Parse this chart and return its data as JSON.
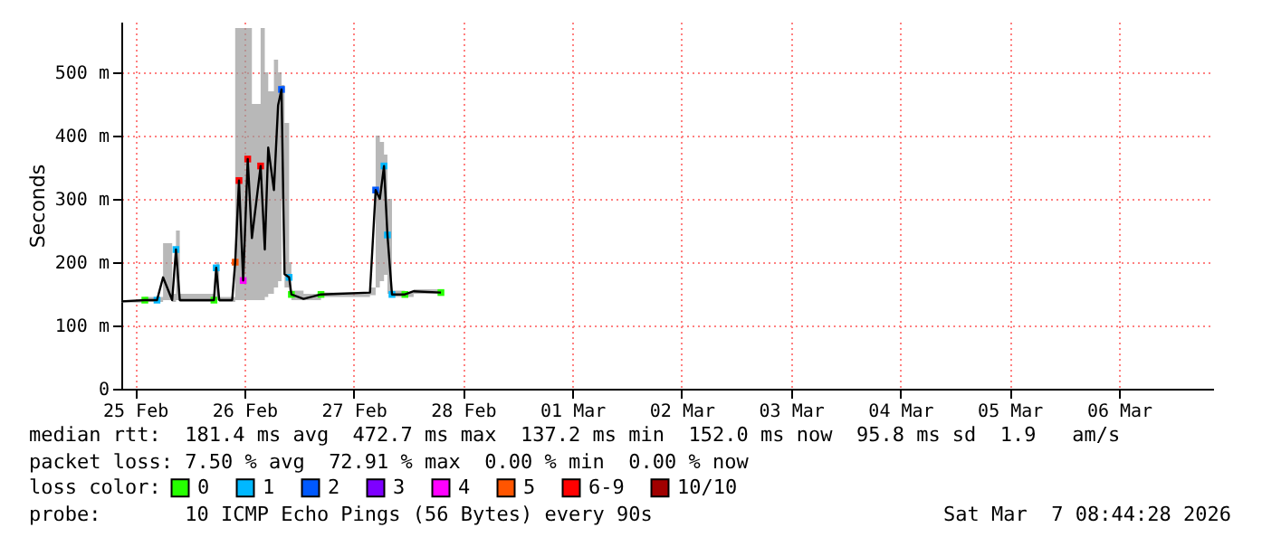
{
  "chart_data": {
    "type": "line",
    "ylabel": "Seconds",
    "ylim": [
      0,
      580
    ],
    "yticks": [
      0,
      {
        "value": 100,
        "label": "100 m"
      },
      {
        "value": 200,
        "label": "200 m"
      },
      {
        "value": 300,
        "label": "300 m"
      },
      {
        "value": 400,
        "label": "400 m"
      },
      {
        "value": 500,
        "label": "500 m"
      }
    ],
    "xlim": [
      "2026-02-24T21:00",
      "2026-03-06T20:40"
    ],
    "xticks": [
      {
        "value": "2026-02-25",
        "label": "25 Feb"
      },
      {
        "value": "2026-02-26",
        "label": "26 Feb"
      },
      {
        "value": "2026-02-27",
        "label": "27 Feb"
      },
      {
        "value": "2026-02-28",
        "label": "28 Feb"
      },
      {
        "value": "2026-03-01",
        "label": "01 Mar"
      },
      {
        "value": "2026-03-02",
        "label": "02 Mar"
      },
      {
        "value": "2026-03-03",
        "label": "03 Mar"
      },
      {
        "value": "2026-03-04",
        "label": "04 Mar"
      },
      {
        "value": "2026-03-05",
        "label": "05 Mar"
      },
      {
        "value": "2026-03-06",
        "label": "06 Mar"
      }
    ],
    "grid": true,
    "legend": "bottom",
    "legend_title": "loss color:",
    "series": [
      {
        "color": "#000000",
        "x": [
          "2026-02-24T21:00",
          "2026-02-25T02:10",
          "2026-02-25T04:50",
          "2026-02-25T06:10",
          "2026-02-25T08:10",
          "2026-02-25T09:00",
          "2026-02-25T09:50",
          "2026-02-25T17:20",
          "2026-02-25T17:50",
          "2026-02-25T18:30",
          "2026-02-25T21:20",
          "2026-02-25T22:00",
          "2026-02-25T22:50",
          "2026-02-25T23:45",
          "2026-02-26T00:45",
          "2026-02-26T01:40",
          "2026-02-26T03:35",
          "2026-02-26T04:30",
          "2026-02-26T05:15",
          "2026-02-26T06:30",
          "2026-02-26T07:25",
          "2026-02-26T08:10",
          "2026-02-26T08:50",
          "2026-02-26T09:50",
          "2026-02-26T10:20",
          "2026-02-26T13:00",
          "2026-02-26T16:50",
          "2026-02-27T03:35",
          "2026-02-27T04:50",
          "2026-02-27T05:45",
          "2026-02-27T06:40",
          "2026-02-27T07:25",
          "2026-02-27T08:25",
          "2026-02-27T11:15",
          "2026-02-27T13:10",
          "2026-02-27T19:10"
        ],
        "values": [
          138,
          140,
          140,
          176,
          140,
          220,
          140,
          140,
          191,
          140,
          140,
          200,
          329,
          171,
          363,
          238,
          352,
          220,
          381,
          314,
          448,
          473,
          181,
          176,
          149,
          142,
          149,
          152,
          314,
          300,
          352,
          243,
          149,
          149,
          154,
          152
        ],
        "lower": [
          136,
          137,
          137,
          140,
          137,
          140,
          137,
          137,
          140,
          137,
          137,
          140,
          140,
          140,
          140,
          140,
          140,
          145,
          150,
          160,
          170,
          300,
          160,
          145,
          140,
          140,
          145,
          148,
          160,
          170,
          180,
          150,
          145,
          145,
          150,
          150
        ],
        "upper": [
          140,
          145,
          145,
          230,
          150,
          250,
          150,
          145,
          200,
          145,
          145,
          570,
          570,
          570,
          570,
          450,
          570,
          500,
          470,
          520,
          500,
          480,
          420,
          200,
          155,
          150,
          152,
          160,
          400,
          390,
          370,
          300,
          155,
          152,
          157,
          156
        ]
      },
      {
        "type": "scatter",
        "name": "0",
        "marker": "square",
        "color": "#26ff00",
        "x": [
          "2026-02-25T02:10",
          "2026-02-25T17:20",
          "2026-02-26T10:20",
          "2026-02-26T16:50",
          "2026-02-27T11:15",
          "2026-02-27T19:10"
        ],
        "values": [
          140,
          140,
          149,
          149,
          149,
          152
        ]
      },
      {
        "type": "scatter",
        "name": "1",
        "marker": "square",
        "color": "#00b8ff",
        "x": [
          "2026-02-25T04:50",
          "2026-02-25T09:00",
          "2026-02-25T17:50",
          "2026-02-26T09:50",
          "2026-02-27T06:40",
          "2026-02-27T07:25",
          "2026-02-27T08:25"
        ],
        "values": [
          140,
          220,
          191,
          176,
          352,
          243,
          149
        ]
      },
      {
        "type": "scatter",
        "name": "2",
        "marker": "square",
        "color": "#0059ff",
        "x": [
          "2026-02-26T08:10",
          "2026-02-27T04:50"
        ],
        "values": [
          473,
          314
        ]
      },
      {
        "type": "scatter",
        "name": "3",
        "marker": "square",
        "color": "#7e00ff"
      },
      {
        "type": "scatter",
        "name": "4",
        "marker": "square",
        "color": "#ff00ff",
        "x": [
          "2026-02-25T23:45"
        ],
        "values": [
          171
        ]
      },
      {
        "type": "scatter",
        "name": "5",
        "marker": "square",
        "color": "#ff5500",
        "x": [
          "2026-02-25T22:00"
        ],
        "values": [
          200
        ]
      },
      {
        "type": "scatter",
        "name": "6-9",
        "marker": "square",
        "color": "#ff0000",
        "x": [
          "2026-02-25T22:50",
          "2026-02-26T00:45",
          "2026-02-26T03:35"
        ],
        "values": [
          329,
          363,
          352
        ]
      },
      {
        "type": "scatter",
        "name": "10/10",
        "marker": "square",
        "color": "#a10000"
      }
    ],
    "annotations": [
      "median rtt:  181.4 ms avg  472.7 ms max  137.2 ms min  152.0 ms now  95.8 ms sd  1.9   am/s",
      "packet loss: 7.50 % avg  72.91 % max  0.00 % min  0.00 % now",
      "probe:       10 ICMP Echo Pings (56 Bytes) every 90s",
      "Sat Mar  7 08:44:28 2026"
    ]
  }
}
